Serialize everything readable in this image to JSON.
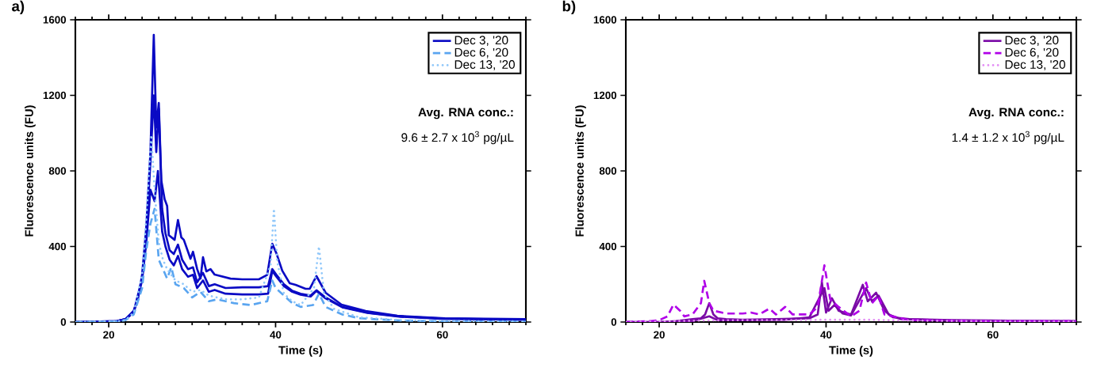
{
  "chart_data": [
    {
      "type": "line",
      "title": "a)",
      "xlabel": "Time (s)",
      "ylabel": "Fluorescence units (FU)",
      "xlim": [
        16,
        70
      ],
      "ylim": [
        0,
        1600
      ],
      "xticks": [
        {
          "value": 16,
          "label": null
        },
        {
          "value": 18,
          "label": null
        },
        20,
        {
          "value": 22,
          "label": null
        },
        {
          "value": 24,
          "label": null
        },
        {
          "value": 26,
          "label": null
        },
        {
          "value": 28,
          "label": null
        },
        {
          "value": 30,
          "label": null
        },
        {
          "value": 32,
          "label": null
        },
        {
          "value": 34,
          "label": null
        },
        {
          "value": 36,
          "label": null
        },
        {
          "value": 38,
          "label": null
        },
        40,
        {
          "value": 42,
          "label": null
        },
        {
          "value": 44,
          "label": null
        },
        {
          "value": 46,
          "label": null
        },
        {
          "value": 48,
          "label": null
        },
        {
          "value": 50,
          "label": null
        },
        {
          "value": 52,
          "label": null
        },
        {
          "value": 54,
          "label": null
        },
        {
          "value": 56,
          "label": null
        },
        {
          "value": 58,
          "label": null
        },
        60,
        {
          "value": 62,
          "label": null
        },
        {
          "value": 64,
          "label": null
        },
        {
          "value": 66,
          "label": null
        },
        {
          "value": 68,
          "label": null
        },
        {
          "value": 70,
          "label": null
        }
      ],
      "yticks": [
        0,
        400,
        800,
        1200,
        1600
      ],
      "legend": "top right",
      "annotations": [
        "Avg. RNA conc.:",
        "9.6 ± 2.7 x 10$^{3}$ pg/µL"
      ],
      "series": [
        {
          "name": "Dec 3, '20",
          "color": "#0a0ac4",
          "line_style": "solid",
          "x": [
            16,
            20,
            21,
            22,
            23,
            23.5,
            24,
            24.5,
            25,
            25.4,
            25.7,
            26.0,
            26.3,
            26.7,
            27.0,
            27.2,
            27.9,
            28.3,
            28.7,
            29.0,
            29.8,
            30.1,
            30.6,
            31.0,
            31.3,
            31.7,
            32.2,
            32.7,
            34.6,
            36,
            38,
            39.0,
            39.6,
            40.1,
            40.8,
            41.7,
            42.4,
            43.6,
            44.1,
            44.9,
            46.0,
            47.9,
            50.8,
            54.6,
            60.3,
            70
          ],
          "values": [
            0,
            0,
            5,
            15,
            60,
            120,
            250,
            500,
            900,
            1520,
            1030,
            1160,
            750,
            650,
            615,
            460,
            435,
            540,
            448,
            435,
            335,
            372,
            280,
            230,
            343,
            268,
            280,
            251,
            230,
            226,
            226,
            250,
            414,
            364,
            272,
            205,
            197,
            176,
            176,
            243,
            155,
            92,
            58,
            33,
            20,
            15
          ]
        },
        {
          "color": "#0a0ac4",
          "line_style": "solid",
          "x": [
            16,
            21,
            22,
            23,
            24,
            24.5,
            25,
            25.4,
            25.7,
            26.0,
            26.4,
            26.8,
            27.3,
            27.8,
            28.3,
            28.8,
            29.5,
            30.1,
            30.6,
            31.3,
            32.0,
            32.7,
            34,
            36,
            38,
            39.1,
            39.6,
            40.1,
            41,
            42,
            43,
            44.2,
            44.9,
            46,
            48,
            51,
            55,
            60,
            70
          ],
          "values": [
            0,
            5,
            15,
            55,
            230,
            450,
            850,
            1200,
            900,
            1130,
            600,
            470,
            380,
            360,
            410,
            330,
            280,
            290,
            210,
            260,
            190,
            200,
            180,
            184,
            184,
            190,
            280,
            250,
            200,
            165,
            150,
            140,
            168,
            130,
            80,
            50,
            30,
            18,
            12
          ]
        },
        {
          "color": "#0a0ac4",
          "line_style": "solid",
          "x": [
            16,
            21,
            22,
            23,
            24,
            24.5,
            25,
            25.5,
            25.9,
            26.4,
            26.8,
            27.3,
            27.8,
            28.3,
            28.8,
            29.5,
            30.1,
            30.6,
            31.3,
            32.0,
            32.7,
            34,
            36,
            38,
            39.1,
            39.6,
            40.1,
            41,
            42,
            43,
            44.2,
            44.9,
            46,
            48,
            51,
            55,
            60,
            70
          ],
          "values": [
            0,
            5,
            15,
            50,
            220,
            420,
            700,
            640,
            800,
            480,
            400,
            330,
            300,
            350,
            280,
            240,
            250,
            180,
            220,
            160,
            170,
            150,
            146,
            146,
            150,
            270,
            240,
            190,
            160,
            145,
            135,
            165,
            125,
            78,
            48,
            28,
            17,
            12
          ]
        },
        {
          "name": "Dec 6, '20",
          "color": "#5aa5f0",
          "line_style": "dashed",
          "x": [
            16,
            21,
            22,
            23,
            24,
            24.5,
            25,
            25.5,
            26,
            26.5,
            27,
            27.5,
            28,
            29,
            30,
            31,
            32,
            33,
            35,
            37,
            39,
            39.6,
            40,
            41,
            42,
            43,
            44.5,
            45.2,
            46,
            48,
            50,
            55,
            60,
            70
          ],
          "values": [
            0,
            3,
            10,
            40,
            180,
            380,
            520,
            600,
            330,
            280,
            230,
            290,
            200,
            180,
            130,
            160,
            110,
            120,
            100,
            90,
            110,
            220,
            180,
            140,
            100,
            80,
            90,
            150,
            80,
            40,
            20,
            8,
            4,
            2
          ]
        },
        {
          "name": "Dec 13, '20",
          "color": "#91c8fa",
          "line_style": "dotted",
          "x": [
            16,
            21,
            22,
            23,
            24,
            24.5,
            25.1,
            25.5,
            26,
            26.5,
            27,
            28,
            29,
            30,
            31,
            32,
            34,
            36,
            38,
            39.4,
            39.8,
            40.2,
            41,
            42,
            43,
            44.6,
            45.2,
            45.8,
            47,
            50,
            55,
            60,
            70
          ],
          "values": [
            0,
            3,
            10,
            50,
            250,
            550,
            990,
            700,
            420,
            330,
            280,
            220,
            200,
            160,
            170,
            140,
            120,
            120,
            130,
            300,
            600,
            320,
            150,
            110,
            90,
            180,
            400,
            150,
            70,
            25,
            10,
            5,
            3
          ]
        }
      ]
    },
    {
      "type": "line",
      "title": "b)",
      "xlabel": "Time (s)",
      "ylabel": "Fluorescence units (FU)",
      "xlim": [
        16,
        70
      ],
      "ylim": [
        0,
        1600
      ],
      "xticks": [
        {
          "value": 16,
          "label": null
        },
        {
          "value": 18,
          "label": null
        },
        20,
        {
          "value": 22,
          "label": null
        },
        {
          "value": 24,
          "label": null
        },
        {
          "value": 26,
          "label": null
        },
        {
          "value": 28,
          "label": null
        },
        {
          "value": 30,
          "label": null
        },
        {
          "value": 32,
          "label": null
        },
        {
          "value": 34,
          "label": null
        },
        {
          "value": 36,
          "label": null
        },
        {
          "value": 38,
          "label": null
        },
        40,
        {
          "value": 42,
          "label": null
        },
        {
          "value": 44,
          "label": null
        },
        {
          "value": 46,
          "label": null
        },
        {
          "value": 48,
          "label": null
        },
        {
          "value": 50,
          "label": null
        },
        {
          "value": 52,
          "label": null
        },
        {
          "value": 54,
          "label": null
        },
        {
          "value": 56,
          "label": null
        },
        {
          "value": 58,
          "label": null
        },
        60,
        {
          "value": 62,
          "label": null
        },
        {
          "value": 64,
          "label": null
        },
        {
          "value": 66,
          "label": null
        },
        {
          "value": 68,
          "label": null
        },
        {
          "value": 70,
          "label": null
        }
      ],
      "yticks": [
        0,
        400,
        800,
        1200,
        1600
      ],
      "legend": "top right",
      "annotations": [
        "Avg. RNA conc.:",
        "1.4 ± 1.2 x 10$^{3}$ pg/µL"
      ],
      "series": [
        {
          "name": "Dec 3, '20",
          "color": "#7a0aa6",
          "line_style": "solid",
          "x": [
            16,
            20,
            22,
            23,
            24,
            25,
            25.5,
            26,
            26.5,
            27,
            28,
            30,
            34,
            38,
            39,
            39.5,
            40.0,
            40.7,
            41.5,
            43,
            44.4,
            45,
            46,
            47,
            48,
            50,
            55,
            60,
            70
          ],
          "values": [
            0,
            0,
            5,
            10,
            15,
            20,
            40,
            100,
            40,
            20,
            15,
            12,
            15,
            20,
            40,
            210,
            50,
            126,
            60,
            40,
            197,
            110,
            155,
            60,
            25,
            15,
            10,
            8,
            5
          ]
        },
        {
          "color": "#7a0aa6",
          "line_style": "solid",
          "x": [
            16,
            20,
            24,
            26,
            27,
            30,
            35,
            38,
            39.8,
            40.3,
            41,
            42,
            43,
            44.8,
            45.5,
            46.3,
            47.5,
            49,
            55,
            60,
            70
          ],
          "values": [
            0,
            0,
            5,
            30,
            10,
            10,
            12,
            25,
            180,
            60,
            90,
            45,
            35,
            180,
            110,
            140,
            40,
            15,
            8,
            6,
            4
          ]
        },
        {
          "name": "Dec 6, '20",
          "color": "#b000e8",
          "line_style": "dashed",
          "x": [
            16,
            19,
            20,
            21,
            21.7,
            22.5,
            23,
            24,
            25,
            25.4,
            26,
            26.5,
            27.5,
            28,
            30,
            31,
            32,
            33.2,
            34,
            35.1,
            36,
            38,
            39,
            39.8,
            40.5,
            41.5,
            43,
            44,
            44.8,
            45.5,
            46.3,
            47,
            50,
            60,
            70
          ],
          "values": [
            0,
            5,
            10,
            30,
            92,
            60,
            30,
            40,
            100,
            218,
            100,
            60,
            50,
            45,
            45,
            50,
            40,
            71,
            40,
            80,
            40,
            40,
            80,
            300,
            120,
            80,
            30,
            60,
            209,
            100,
            140,
            40,
            10,
            5,
            5
          ]
        },
        {
          "name": "Dec 13, '20",
          "color": "#e38ef5",
          "line_style": "dotted",
          "x": [
            16,
            20,
            25,
            30,
            35,
            40,
            45,
            50,
            60,
            70
          ],
          "values": [
            0,
            3,
            8,
            10,
            10,
            12,
            12,
            8,
            4,
            3
          ]
        }
      ]
    }
  ]
}
